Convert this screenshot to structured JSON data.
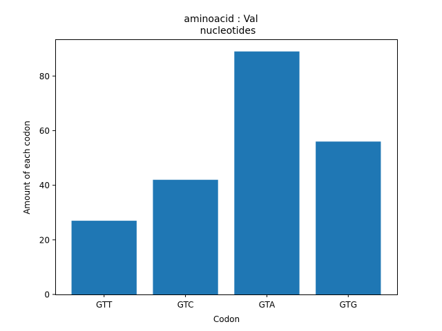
{
  "chart_data": {
    "type": "bar",
    "title": "aminoacid : Val",
    "subtitle": "nucleotides",
    "xlabel": "Codon",
    "ylabel": "Amount of each codon",
    "categories": [
      "GTT",
      "GTC",
      "GTA",
      "GTG"
    ],
    "values": [
      27,
      42,
      89,
      56
    ],
    "ylim": [
      0,
      93.45
    ],
    "yticks": [
      0,
      20,
      40,
      60,
      80
    ],
    "ytick_labels": [
      "0",
      "20",
      "40",
      "60",
      "80"
    ],
    "bar_color": "#1f77b4",
    "grid": false,
    "legend": "none"
  }
}
